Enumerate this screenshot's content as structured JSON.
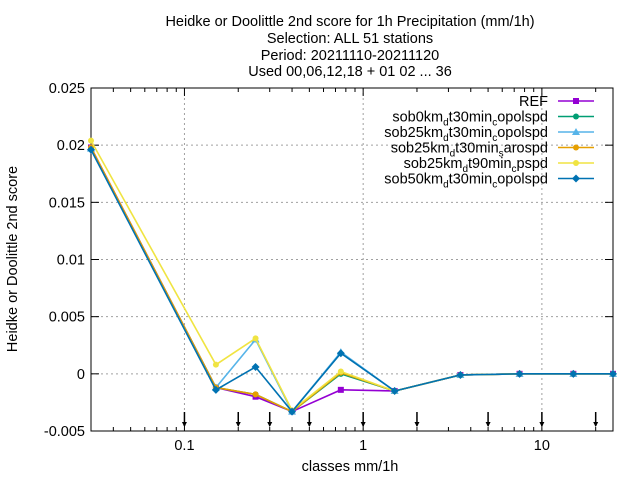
{
  "chart_data": {
    "type": "line",
    "title_lines": [
      "Heidke or Doolittle 2nd score  for 1h Precipitation (mm/1h)",
      "Selection: ALL     51 stations",
      "Period: 20211110-20211120",
      "Used 00,06,12,18 + 01 02 ... 36"
    ],
    "xlabel": "classes mm/1h",
    "ylabel": "Heidke or Doolittle 2nd score",
    "x_scale": "log",
    "xlim": [
      0.03,
      25
    ],
    "ylim": [
      -0.005,
      0.025
    ],
    "x_ticks": [
      0.1,
      1,
      10
    ],
    "x_tick_labels": [
      "0.1",
      "1",
      "10"
    ],
    "y_ticks": [
      -0.005,
      0,
      0.005,
      0.01,
      0.015,
      0.02,
      0.025
    ],
    "y_tick_labels": [
      "-0.005",
      "0",
      "0.005",
      "0.01",
      "0.015",
      "0.02",
      "0.025"
    ],
    "grid": true,
    "legend_position": "top-right",
    "bottom_markers_x": [
      0.1,
      0.2,
      0.3,
      0.5,
      1,
      2,
      5,
      10,
      20
    ],
    "x": [
      0.03,
      0.15,
      0.25,
      0.4,
      0.75,
      1.5,
      3.5,
      7.5,
      15,
      25
    ],
    "series": [
      {
        "name": "REF",
        "name_main": "REF",
        "name_sub": "",
        "name_rest": "",
        "name_sub2": "",
        "name_tail": "",
        "color": "#9400d3",
        "marker": "square",
        "values": [
          0.0198,
          -0.0012,
          -0.002,
          -0.0033,
          -0.0014,
          -0.0015,
          -0.0001,
          0.0,
          0.0,
          0.0
        ]
      },
      {
        "name": "sob0kmdt30mincopolspd",
        "name_main": "sob0km",
        "name_sub": "d",
        "name_rest": "t30min",
        "name_sub2": "c",
        "name_tail": "opolspd",
        "color": "#009e73",
        "marker": "circle",
        "values": [
          0.0197,
          -0.0012,
          -0.0018,
          -0.0033,
          0.0,
          -0.0015,
          -0.0001,
          0.0,
          0.0,
          0.0
        ]
      },
      {
        "name": "sob25kmdt30mincopolspd",
        "name_main": "sob25km",
        "name_sub": "d",
        "name_rest": "t30min",
        "name_sub2": "c",
        "name_tail": "opolspd",
        "color": "#56b4e9",
        "marker": "triangle",
        "values": [
          0.0197,
          -0.0012,
          0.003,
          -0.0033,
          0.0019,
          -0.0015,
          -0.0001,
          0.0,
          0.0,
          0.0
        ]
      },
      {
        "name": "sob25kmdt30minsarospd",
        "name_main": "sob25km",
        "name_sub": "d",
        "name_rest": "t30min",
        "name_sub2": "s",
        "name_tail": "arospd",
        "color": "#e69f00",
        "marker": "circle",
        "values": [
          0.0198,
          -0.0012,
          -0.0018,
          -0.0033,
          0.0001,
          -0.0015,
          -0.0001,
          0.0,
          0.0,
          0.0
        ]
      },
      {
        "name": "sob25kmdt90mincpspd",
        "name_main": "sob25km",
        "name_sub": "d",
        "name_rest": "t90min",
        "name_sub2": "c",
        "name_tail": "pspd",
        "color": "#f0e442",
        "marker": "circle",
        "values": [
          0.0204,
          0.0008,
          0.0031,
          -0.0032,
          0.0002,
          -0.0015,
          -0.0001,
          0.0,
          0.0,
          0.0
        ]
      },
      {
        "name": "sob50kmdt30mincopolspd",
        "name_main": "sob50km",
        "name_sub": "d",
        "name_rest": "t30min",
        "name_sub2": "c",
        "name_tail": "opolspd",
        "color": "#0072b2",
        "marker": "diamond",
        "values": [
          0.0196,
          -0.0014,
          0.0006,
          -0.0033,
          0.0018,
          -0.0015,
          -0.0001,
          0.0,
          0.0,
          0.0
        ]
      }
    ]
  }
}
